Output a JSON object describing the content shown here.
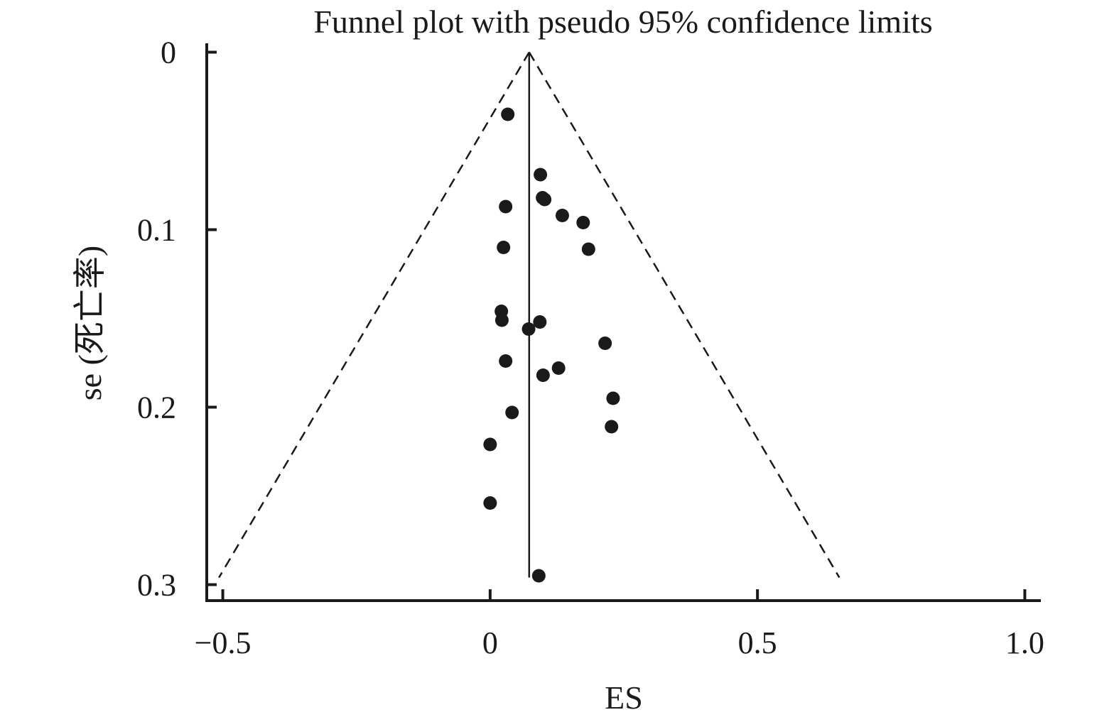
{
  "chart_data": {
    "type": "scatter",
    "title": "Funnel plot with pseudo 95% confidence limits",
    "xlabel": "ES",
    "ylabel": "se (死亡率)",
    "xlim": [
      -0.53,
      1.03
    ],
    "ylim": [
      0.309,
      -0.005
    ],
    "y_reversed": true,
    "x_ticks": [
      {
        "value": -0.5,
        "label": "−0.5"
      },
      {
        "value": 0,
        "label": "0"
      },
      {
        "value": 0.5,
        "label": "0.5"
      },
      {
        "value": 1.0,
        "label": "1.0"
      }
    ],
    "y_ticks": [
      {
        "value": 0,
        "label": "0"
      },
      {
        "value": 0.1,
        "label": "0.1"
      },
      {
        "value": 0.2,
        "label": "0.2"
      },
      {
        "value": 0.3,
        "label": "0.3"
      }
    ],
    "pooled_estimate": 0.073,
    "ci_se_max": 0.296,
    "ci_z": 1.96,
    "grid": false,
    "series": [
      {
        "points": [
          {
            "x": 0.033,
            "y": 0.035
          },
          {
            "x": 0.094,
            "y": 0.069
          },
          {
            "x": 0.029,
            "y": 0.087
          },
          {
            "x": 0.098,
            "y": 0.082
          },
          {
            "x": 0.102,
            "y": 0.083
          },
          {
            "x": 0.135,
            "y": 0.092
          },
          {
            "x": 0.174,
            "y": 0.096
          },
          {
            "x": 0.025,
            "y": 0.11
          },
          {
            "x": 0.184,
            "y": 0.111
          },
          {
            "x": 0.021,
            "y": 0.146
          },
          {
            "x": 0.022,
            "y": 0.151
          },
          {
            "x": 0.093,
            "y": 0.152
          },
          {
            "x": 0.072,
            "y": 0.156
          },
          {
            "x": 0.215,
            "y": 0.164
          },
          {
            "x": 0.029,
            "y": 0.174
          },
          {
            "x": 0.128,
            "y": 0.178
          },
          {
            "x": 0.099,
            "y": 0.182
          },
          {
            "x": 0.23,
            "y": 0.195
          },
          {
            "x": 0.041,
            "y": 0.203
          },
          {
            "x": 0.227,
            "y": 0.211
          },
          {
            "x": 0.0,
            "y": 0.221
          },
          {
            "x": 0.0,
            "y": 0.254
          },
          {
            "x": 0.091,
            "y": 0.295
          }
        ]
      }
    ]
  }
}
